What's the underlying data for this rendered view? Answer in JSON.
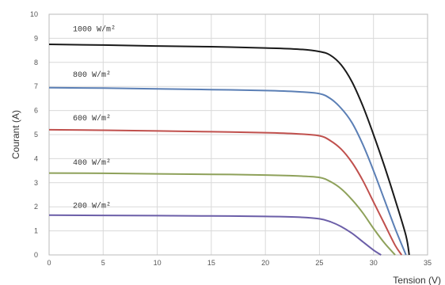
{
  "chart_data": {
    "type": "line",
    "xlabel": "Tension (V)",
    "ylabel": "Courant (A)",
    "xlim": [
      0,
      35
    ],
    "ylim": [
      0,
      10
    ],
    "xticks": [
      "0",
      "5",
      "10",
      "15",
      "20",
      "25",
      "30",
      "35"
    ],
    "yticks": [
      "0",
      "1",
      "2",
      "3",
      "4",
      "5",
      "6",
      "7",
      "8",
      "9",
      "10"
    ],
    "grid": true,
    "legend": "inline labels above each curve",
    "series": [
      {
        "name": "1000 W/m²",
        "color": "#1a1a1a",
        "label_at": [
          2.2,
          9.3
        ],
        "x": [
          0,
          5,
          10,
          15,
          20,
          23,
          25,
          26,
          27,
          28,
          29,
          30,
          31,
          32,
          33,
          33.3
        ],
        "y": [
          8.75,
          8.72,
          8.68,
          8.65,
          8.6,
          8.55,
          8.45,
          8.3,
          7.9,
          7.2,
          6.2,
          5.0,
          3.7,
          2.3,
          0.8,
          0.0
        ]
      },
      {
        "name": "800 W/m²",
        "color": "#5b7fb5",
        "label_at": [
          2.2,
          7.4
        ],
        "x": [
          0,
          5,
          10,
          15,
          20,
          23,
          25,
          26,
          27,
          28,
          29,
          30,
          31,
          32,
          33
        ],
        "y": [
          6.95,
          6.93,
          6.9,
          6.87,
          6.83,
          6.78,
          6.7,
          6.5,
          6.1,
          5.5,
          4.6,
          3.5,
          2.3,
          1.1,
          0.0
        ]
      },
      {
        "name": "600 W/m²",
        "color": "#c0504d",
        "label_at": [
          2.2,
          5.6
        ],
        "x": [
          0,
          5,
          10,
          15,
          20,
          23,
          25,
          26,
          27,
          28,
          29,
          30,
          31,
          32,
          32.6
        ],
        "y": [
          5.2,
          5.18,
          5.15,
          5.12,
          5.08,
          5.03,
          4.95,
          4.75,
          4.4,
          3.85,
          3.1,
          2.2,
          1.3,
          0.4,
          0.0
        ]
      },
      {
        "name": "400 W/m²",
        "color": "#8ea15a",
        "label_at": [
          2.2,
          3.75
        ],
        "x": [
          0,
          5,
          10,
          15,
          20,
          23,
          25,
          26,
          27,
          28,
          29,
          30,
          31,
          32
        ],
        "y": [
          3.4,
          3.39,
          3.37,
          3.35,
          3.32,
          3.28,
          3.22,
          3.05,
          2.75,
          2.3,
          1.75,
          1.1,
          0.5,
          0.0
        ]
      },
      {
        "name": "200 W/m²",
        "color": "#6b5ea8",
        "label_at": [
          2.2,
          1.95
        ],
        "x": [
          0,
          5,
          10,
          15,
          20,
          23,
          25,
          26,
          27,
          28,
          29,
          30,
          30.7
        ],
        "y": [
          1.65,
          1.64,
          1.63,
          1.62,
          1.6,
          1.57,
          1.5,
          1.38,
          1.18,
          0.9,
          0.55,
          0.2,
          0.0
        ]
      }
    ]
  }
}
